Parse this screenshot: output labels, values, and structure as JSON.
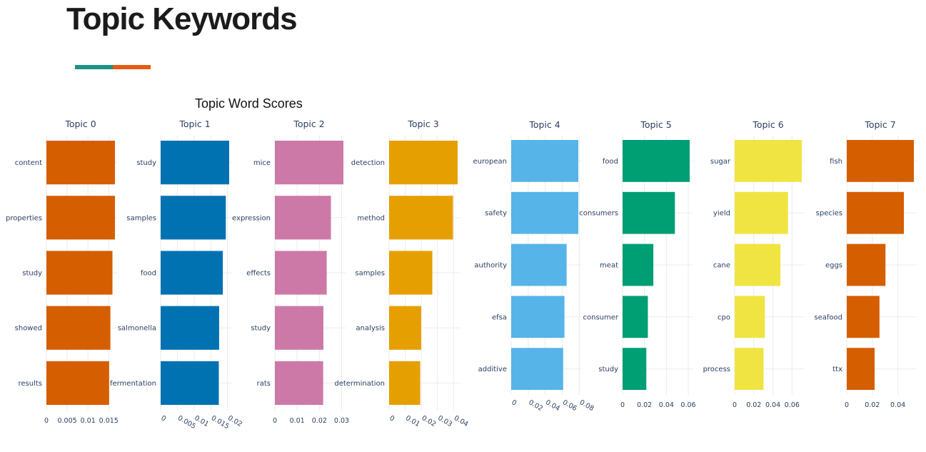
{
  "page": {
    "heading": "Topic Keywords",
    "accent_colors": [
      "#1a9485",
      "#e35c14"
    ]
  },
  "chart_data": {
    "type": "bar",
    "title": "Topic Word Scores",
    "orientation": "horizontal",
    "grid": true,
    "panels": [
      {
        "name": "Topic 0",
        "color": "#D55E00",
        "categories": [
          "content",
          "properties",
          "study",
          "showed",
          "results"
        ],
        "values": [
          0.0165,
          0.0165,
          0.0159,
          0.0154,
          0.0151
        ],
        "xlim": [
          0,
          0.0165
        ],
        "ticks": [
          0,
          0.005,
          0.01,
          0.015
        ],
        "tick_labels": [
          "0",
          "0.005",
          "0.01",
          "0.015"
        ],
        "tick_rotate": false
      },
      {
        "name": "Topic 1",
        "color": "#0072B2",
        "categories": [
          "study",
          "samples",
          "food",
          "salmonella",
          "fermentation"
        ],
        "values": [
          0.0205,
          0.0195,
          0.0186,
          0.0175,
          0.0174
        ],
        "xlim": [
          0,
          0.0205
        ],
        "ticks": [
          0,
          0.005,
          0.01,
          0.015,
          0.02
        ],
        "tick_labels": [
          "0",
          "0.005",
          "0.01",
          "0.015",
          "0.02"
        ],
        "tick_rotate": true
      },
      {
        "name": "Topic 2",
        "color": "#CC79A7",
        "categories": [
          "mice",
          "expression",
          "effects",
          "study",
          "rats"
        ],
        "values": [
          0.0308,
          0.0252,
          0.0233,
          0.0218,
          0.0217
        ],
        "xlim": [
          0,
          0.0308
        ],
        "ticks": [
          0,
          0.01,
          0.02,
          0.03
        ],
        "tick_labels": [
          "0",
          "0.01",
          "0.02",
          "0.03"
        ],
        "tick_rotate": false
      },
      {
        "name": "Topic 3",
        "color": "#E69F00",
        "categories": [
          "detection",
          "method",
          "samples",
          "analysis",
          "determination"
        ],
        "values": [
          0.0425,
          0.0396,
          0.0268,
          0.0199,
          0.0193
        ],
        "xlim": [
          0,
          0.0425
        ],
        "ticks": [
          0,
          0.01,
          0.02,
          0.03,
          0.04
        ],
        "tick_labels": [
          "0",
          "0.01",
          "0.02",
          "0.03",
          "0.04"
        ],
        "tick_rotate": true
      },
      {
        "name": "Topic 4",
        "color": "#56B4E9",
        "categories": [
          "european",
          "safety",
          "authority",
          "efsa",
          "additive"
        ],
        "values": [
          0.0789,
          0.0789,
          0.0652,
          0.0626,
          0.0611
        ],
        "xlim": [
          0,
          0.0789
        ],
        "ticks": [
          0,
          0.02,
          0.04,
          0.06,
          0.08
        ],
        "tick_labels": [
          "0",
          "0.02",
          "0.04",
          "0.06",
          "0.08"
        ],
        "tick_rotate": true
      },
      {
        "name": "Topic 5",
        "color": "#009E73",
        "categories": [
          "food",
          "consumers",
          "meat",
          "consumer",
          "study"
        ],
        "values": [
          0.0613,
          0.0478,
          0.0281,
          0.0231,
          0.0217
        ],
        "xlim": [
          0,
          0.0613
        ],
        "ticks": [
          0,
          0.02,
          0.04,
          0.06
        ],
        "tick_labels": [
          "0",
          "0.02",
          "0.04",
          "0.06"
        ],
        "tick_rotate": false
      },
      {
        "name": "Topic 6",
        "color": "#F0E442",
        "categories": [
          "sugar",
          "yield",
          "cane",
          "cpo",
          "process"
        ],
        "values": [
          0.0702,
          0.0558,
          0.0479,
          0.0316,
          0.0302
        ],
        "xlim": [
          0,
          0.0702
        ],
        "ticks": [
          0,
          0.02,
          0.04,
          0.06
        ],
        "tick_labels": [
          "0",
          "0.02",
          "0.04",
          "0.06"
        ],
        "tick_rotate": false
      },
      {
        "name": "Topic 7",
        "color": "#D55E00",
        "categories": [
          "fish",
          "species",
          "eggs",
          "seafood",
          "ttx"
        ],
        "values": [
          0.0525,
          0.0447,
          0.0303,
          0.0256,
          0.0218
        ],
        "xlim": [
          0,
          0.0525
        ],
        "ticks": [
          0,
          0.02,
          0.04
        ],
        "tick_labels": [
          "0",
          "0.02",
          "0.04"
        ],
        "tick_rotate": false
      }
    ]
  }
}
